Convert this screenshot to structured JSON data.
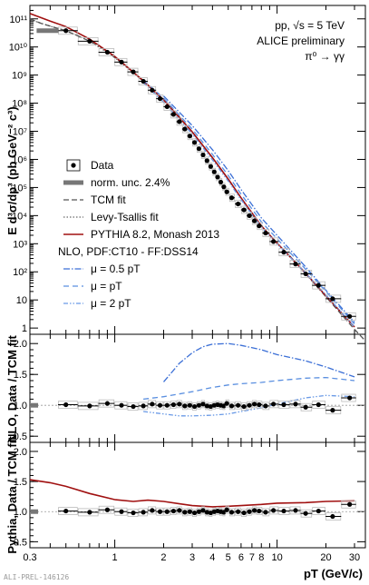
{
  "annotations": {
    "system": "pp, √s = 5 TeV",
    "collab": "ALICE preliminary",
    "decay": "π⁰ → γγ",
    "watermark": "ALI-PREL-146126"
  },
  "legend": {
    "items": [
      "Data",
      "norm. unc. 2.4%",
      "TCM fit",
      "Levy-Tsallis fit",
      "PYTHIA 8.2, Monash 2013",
      "NLO, PDF:CT10 - FF:DSS14",
      "μ = 0.5 pT",
      "μ = pT",
      "μ = 2 pT"
    ]
  },
  "colors": {
    "data": "#000000",
    "tcm": "#555555",
    "levy": "#444444",
    "pythia": "#a01010",
    "mu05": "#3b6fd6",
    "mu1": "#5a8fe0",
    "mu2": "#6a9ae6",
    "band": "#777777",
    "box": "#bbbbbb"
  },
  "chart_data": [
    {
      "type": "scatter",
      "panel": "spectrum",
      "xlabel": "pT (GeV/c)",
      "ylabel": "E d³σ/dp³ (pb GeV⁻² c³)",
      "xscale": "log",
      "yscale": "log",
      "xlim": [
        0.3,
        35
      ],
      "ylim": [
        0.6,
        300000000000.0
      ],
      "yticks": [
        "1",
        "10",
        "10²",
        "10³",
        "10⁴",
        "10⁵",
        "10⁶",
        "10⁷",
        "10⁸",
        "10⁹",
        "10¹⁰",
        "10¹¹"
      ],
      "series": [
        {
          "name": "Data",
          "x": [
            0.5,
            0.7,
            0.9,
            1.1,
            1.3,
            1.5,
            1.7,
            1.9,
            2.1,
            2.3,
            2.5,
            2.7,
            2.9,
            3.1,
            3.3,
            3.5,
            3.7,
            3.9,
            4.1,
            4.3,
            4.5,
            4.7,
            4.9,
            5.25,
            5.75,
            6.25,
            6.75,
            7.25,
            7.75,
            8.5,
            9.5,
            11,
            13,
            15,
            18,
            22,
            28
          ],
          "y": [
            38000000000.0,
            16000000000.0,
            6500000000.0,
            2900000000.0,
            1300000000.0,
            600000000.0,
            290000000.0,
            145000000.0,
            75000000.0,
            40000000.0,
            22000000.0,
            12000000.0,
            6800000.0,
            4000000.0,
            2400000.0,
            1450000.0,
            900000.0,
            560000.0,
            360000.0,
            235000.0,
            155000.0,
            105000.0,
            70000.0,
            43000.0,
            26000.0,
            16000.0,
            10000.0,
            6500.0,
            4300.0,
            2400.0,
            1200.0,
            500.0,
            190.0,
            85,
            33,
            11,
            2.6
          ]
        },
        {
          "name": "TCM fit",
          "x": [
            0.3,
            0.35,
            0.4,
            0.5,
            0.6,
            0.7,
            0.8,
            0.9,
            1.0,
            1.2,
            1.5,
            2.0,
            2.5,
            3.0,
            3.5,
            4.0,
            5.0,
            6.0,
            7.0,
            8.0,
            10,
            12,
            15,
            20,
            25,
            30,
            35
          ],
          "y": [
            100000000000.0,
            70000000000.0,
            55000000000.0,
            38000000000.0,
            24000000000.0,
            16000000000.0,
            11000000000.0,
            6500000000.0,
            4200000000.0,
            1900000000.0,
            600000000.0,
            130000000.0,
            33000000.0,
            9500000.0,
            3000000.0,
            1150000.0,
            200000.0,
            43000.0,
            11000.0,
            4300.0,
            1050.0,
            360.0,
            85,
            13,
            3.0,
            0.9,
            0.35
          ]
        },
        {
          "name": "Levy-Tsallis fit",
          "x": [
            0.3,
            0.4,
            0.5,
            0.7,
            1.0,
            1.5,
            2.0,
            3.0,
            4.0,
            5.0,
            6.0,
            8.0,
            10,
            15,
            20,
            30
          ],
          "y": [
            95000000000.0,
            55000000000.0,
            38000000000.0,
            16000000000.0,
            4200000000.0,
            600000000.0,
            130000000.0,
            9500000.0,
            1150000.0,
            200000.0,
            43000.0,
            4300.0,
            1050.0,
            88,
            14,
            1.1
          ]
        },
        {
          "name": "PYTHIA 8.2, Monash 2013",
          "x": [
            0.3,
            0.4,
            0.5,
            0.7,
            1.0,
            1.5,
            2.0,
            3.0,
            4.0,
            5.0,
            6.0,
            8.0,
            10,
            15,
            20,
            30
          ],
          "y": [
            155000000000.0,
            83000000000.0,
            53000000000.0,
            19000000000.0,
            4600000000.0,
            630000000.0,
            130000000.0,
            9500000.0,
            1150000.0,
            200000.0,
            43000.0,
            4300.0,
            1050.0,
            90,
            14,
            1.1
          ]
        },
        {
          "name": "μ = 0.5 pT",
          "x": [
            2.0,
            3.0,
            4.0,
            5.0,
            6.0,
            8.0,
            10,
            15,
            20,
            30
          ],
          "y": [
            180000000.0,
            16000000.0,
            2200000.0,
            400000.0,
            85000.0,
            8300.0,
            2000.0,
            150.0,
            22,
            1.6
          ]
        },
        {
          "name": "μ = pT",
          "x": [
            1.5,
            2.0,
            3.0,
            4.0,
            5.0,
            6.0,
            8.0,
            10,
            15,
            20,
            30
          ],
          "y": [
            660000000.0,
            150000000.0,
            12000000.0,
            1500000.0,
            270000.0,
            58000.0,
            6000.0,
            1500.0,
            125.0,
            20,
            1.4
          ]
        },
        {
          "name": "μ = 2 pT",
          "x": [
            1.5,
            2.0,
            3.0,
            4.0,
            5.0,
            6.0,
            8.0,
            10,
            15,
            20,
            30
          ],
          "y": [
            540000000.0,
            108000000.0,
            8000000.0,
            950000.0,
            170000.0,
            37000.0,
            3900.0,
            1000.0,
            90,
            15,
            1.1
          ]
        }
      ]
    },
    {
      "type": "scatter",
      "panel": "ratio-nlo",
      "ylabel": "NLO, Data / TCM fit",
      "xscale": "log",
      "xlim": [
        0.3,
        35
      ],
      "ylim": [
        0.4,
        2.15
      ],
      "yticks": [
        "0.5",
        "1.0",
        "1.5",
        "2.0"
      ],
      "series": [
        {
          "name": "Data",
          "x": [
            0.5,
            0.7,
            0.9,
            1.1,
            1.3,
            1.5,
            1.7,
            1.9,
            2.1,
            2.3,
            2.5,
            2.7,
            2.9,
            3.1,
            3.3,
            3.5,
            3.7,
            3.9,
            4.1,
            4.3,
            4.5,
            4.7,
            4.9,
            5.25,
            5.75,
            6.25,
            6.75,
            7.25,
            7.75,
            8.5,
            9.5,
            11,
            13,
            15,
            18,
            22,
            28
          ],
          "y": [
            1.01,
            0.99,
            1.03,
            1.0,
            0.98,
            0.99,
            1.02,
            1.0,
            1.0,
            1.01,
            1.02,
            0.99,
            1.0,
            0.98,
            1.0,
            1.02,
            0.99,
            0.98,
            1.0,
            1.01,
            1.0,
            0.99,
            1.03,
            0.99,
            1.0,
            0.98,
            1.0,
            1.02,
            1.01,
            0.99,
            1.02,
            1.01,
            1.02,
            0.97,
            1.01,
            0.92,
            1.12
          ]
        },
        {
          "name": "μ = 0.5 pT",
          "x": [
            2.0,
            2.5,
            3.0,
            3.5,
            4.0,
            5.0,
            6.0,
            8.0,
            10,
            15,
            20,
            30
          ],
          "y": [
            1.38,
            1.68,
            1.85,
            1.95,
            1.99,
            2.0,
            1.97,
            1.9,
            1.82,
            1.72,
            1.62,
            1.46
          ]
        },
        {
          "name": "μ = pT",
          "x": [
            1.5,
            2.0,
            3.0,
            4.0,
            5.0,
            6.0,
            8.0,
            10,
            15,
            20,
            30
          ],
          "y": [
            1.1,
            1.14,
            1.22,
            1.29,
            1.33,
            1.35,
            1.37,
            1.4,
            1.44,
            1.45,
            1.4
          ]
        },
        {
          "name": "μ = 2 pT",
          "x": [
            1.5,
            2.0,
            2.5,
            3.0,
            4.0,
            5.0,
            6.0,
            8.0,
            10,
            15,
            20,
            30
          ],
          "y": [
            0.9,
            0.86,
            0.83,
            0.83,
            0.84,
            0.86,
            0.9,
            0.96,
            1.02,
            1.12,
            1.16,
            1.14
          ]
        }
      ]
    },
    {
      "type": "scatter",
      "panel": "ratio-pythia",
      "ylabel": "Pythia, Data / TCM fit",
      "xlabel": "pT (GeV/c)",
      "xscale": "log",
      "xlim": [
        0.3,
        35
      ],
      "ylim": [
        0.4,
        2.15
      ],
      "yticks": [
        "0.5",
        "1.0",
        "1.5",
        "2.0"
      ],
      "xticks": [
        "0.3",
        "1",
        "2",
        "3",
        "4",
        "5",
        "6",
        "7",
        "8",
        "10",
        "20",
        "30"
      ],
      "series": [
        {
          "name": "Data",
          "x": [
            0.5,
            0.7,
            0.9,
            1.1,
            1.3,
            1.5,
            1.7,
            1.9,
            2.1,
            2.3,
            2.5,
            2.7,
            2.9,
            3.1,
            3.3,
            3.5,
            3.7,
            3.9,
            4.1,
            4.3,
            4.5,
            4.7,
            4.9,
            5.25,
            5.75,
            6.25,
            6.75,
            7.25,
            7.75,
            8.5,
            9.5,
            11,
            13,
            15,
            18,
            22,
            28
          ],
          "y": [
            1.01,
            0.99,
            1.03,
            1.0,
            0.98,
            0.99,
            1.02,
            1.0,
            1.0,
            1.01,
            1.02,
            0.99,
            1.0,
            0.98,
            1.0,
            1.02,
            0.99,
            0.98,
            1.0,
            1.01,
            1.0,
            0.99,
            1.03,
            0.99,
            1.0,
            0.98,
            1.0,
            1.02,
            1.01,
            0.99,
            1.02,
            1.01,
            1.02,
            0.97,
            1.01,
            0.92,
            1.12
          ]
        },
        {
          "name": "PYTHIA 8.2, Monash 2013",
          "x": [
            0.3,
            0.4,
            0.5,
            0.7,
            1.0,
            1.3,
            1.6,
            2.0,
            2.5,
            3.0,
            4.0,
            5.0,
            6.0,
            8.0,
            10,
            15,
            20,
            30
          ],
          "y": [
            1.53,
            1.48,
            1.42,
            1.3,
            1.2,
            1.17,
            1.19,
            1.17,
            1.13,
            1.1,
            1.08,
            1.09,
            1.1,
            1.12,
            1.14,
            1.15,
            1.17,
            1.18
          ]
        }
      ]
    }
  ]
}
